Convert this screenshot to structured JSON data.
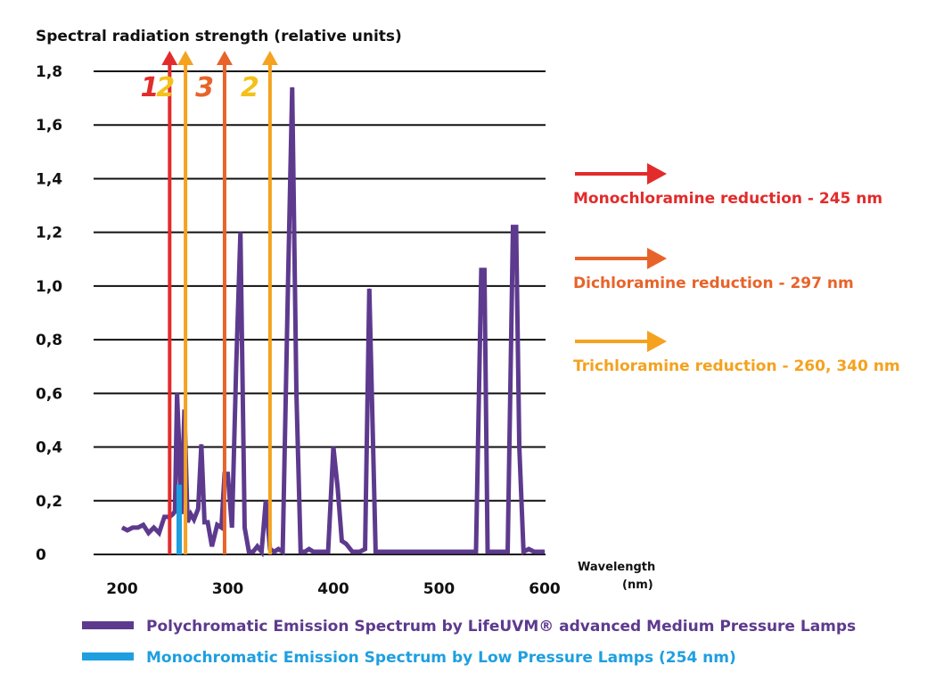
{
  "chart_data": {
    "type": "line",
    "title": "Spectral radiation strength (relative units)",
    "xlabel": [
      "Wavelength",
      "(nm)"
    ],
    "ylabel": "",
    "xlim": [
      200,
      600
    ],
    "ylim": [
      0,
      1.8
    ],
    "x_ticks": [
      200,
      300,
      400,
      500,
      600
    ],
    "y_ticks": [
      "0",
      "0,2",
      "0,4",
      "0,6",
      "0,8",
      "1,0",
      "1,2",
      "1,4",
      "1,6",
      "1,8"
    ],
    "y_tick_values": [
      0,
      0.2,
      0.4,
      0.6,
      0.8,
      1.0,
      1.2,
      1.4,
      1.6,
      1.8
    ],
    "grid": "horizontal",
    "legend_position": "bottom",
    "series": [
      {
        "name": "Polychromatic Emission Spectrum by LifeUVM® advanced Medium Pressure Lamps",
        "color": "#5d3a8e",
        "x": [
          200,
          205,
          210,
          215,
          220,
          225,
          230,
          235,
          240,
          245,
          248,
          250,
          252,
          254,
          256,
          259,
          262,
          265,
          268,
          272,
          275,
          278,
          281,
          285,
          290,
          294,
          297,
          300,
          304,
          308,
          312,
          316,
          320,
          324,
          328,
          332,
          336,
          340,
          344,
          348,
          352,
          357,
          361,
          365,
          369,
          373,
          377,
          381,
          385,
          390,
          395,
          400,
          404,
          408,
          412,
          418,
          425,
          430,
          434,
          437,
          440,
          444,
          450,
          460,
          470,
          480,
          490,
          500,
          510,
          520,
          530,
          535,
          540,
          543,
          546,
          550,
          555,
          560,
          565,
          570,
          573,
          576,
          580,
          585,
          590,
          600
        ],
        "values": [
          0.1,
          0.09,
          0.1,
          0.1,
          0.11,
          0.08,
          0.1,
          0.08,
          0.14,
          0.14,
          0.15,
          0.16,
          0.6,
          0.4,
          0.15,
          0.54,
          0.12,
          0.15,
          0.13,
          0.17,
          0.41,
          0.12,
          0.12,
          0.03,
          0.11,
          0.1,
          0.3,
          0.3,
          0.1,
          0.7,
          1.2,
          0.1,
          0.01,
          0.01,
          0.03,
          0.01,
          0.2,
          0.02,
          0.01,
          0.02,
          0.01,
          1.0,
          1.74,
          0.6,
          0.01,
          0.01,
          0.02,
          0.01,
          0.01,
          0.01,
          0.01,
          0.4,
          0.25,
          0.05,
          0.04,
          0.01,
          0.01,
          0.02,
          0.99,
          0.5,
          0.01,
          0.01,
          0.01,
          0.01,
          0.01,
          0.01,
          0.01,
          0.01,
          0.01,
          0.01,
          0.01,
          0.01,
          1.06,
          1.06,
          0.01,
          0.01,
          0.01,
          0.01,
          0.01,
          1.22,
          1.22,
          0.4,
          0.01,
          0.02,
          0.01,
          0.01
        ]
      },
      {
        "name": "Monochromatic Emission Spectrum by Low Pressure Lamps (254 nm)",
        "color": "#1e9fe0",
        "x": [
          254,
          254
        ],
        "values": [
          0.0,
          0.26
        ]
      }
    ],
    "vertical_arrows": [
      {
        "x": 245,
        "label": "1",
        "color": "#e32b2b",
        "label_color": "#e32b2b"
      },
      {
        "x": 260,
        "label": "2",
        "color": "#f4a21f",
        "label_color": "#f4c11a"
      },
      {
        "x": 297,
        "label": "3",
        "color": "#e8632a",
        "label_color": "#e8632a"
      },
      {
        "x": 340,
        "label": "2",
        "color": "#f4a21f",
        "label_color": "#f4c11a"
      }
    ],
    "annotations": [
      {
        "text": "Monochloramine reduction - 245 nm",
        "color": "#e32b2b"
      },
      {
        "text": "Dichloramine reduction - 297 nm",
        "color": "#e8632a"
      },
      {
        "text": "Trichloramine reduction - 260, 340 nm",
        "color": "#f4a21f"
      }
    ]
  }
}
